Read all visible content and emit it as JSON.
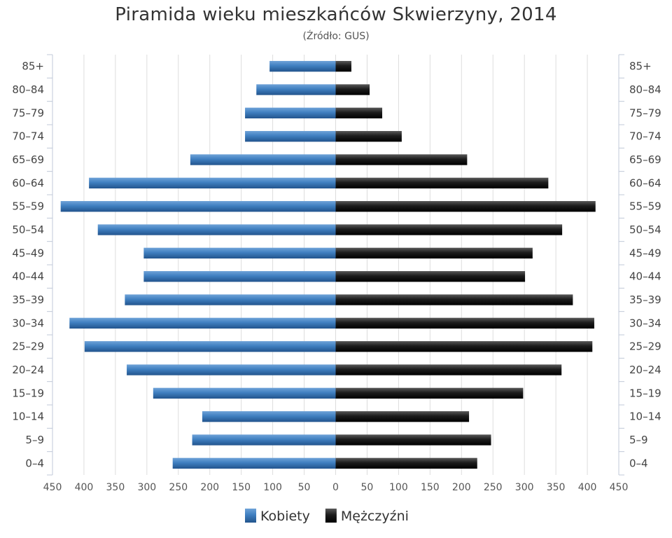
{
  "chart_data": {
    "type": "bar",
    "orientation": "horizontal",
    "title": "Piramida wieku mieszkańców Skwierzyny, 2014",
    "subtitle": "(Źródło: GUS)",
    "categories": [
      "85+",
      "80–84",
      "75–79",
      "70–74",
      "65–69",
      "60–64",
      "55–59",
      "50–54",
      "45–49",
      "40–44",
      "35–39",
      "30–34",
      "25–29",
      "20–24",
      "15–19",
      "10–14",
      "5–9",
      "0–4"
    ],
    "series": [
      {
        "name": "Kobiety",
        "color": "#3f7fc0",
        "values": [
          105,
          126,
          144,
          144,
          231,
          392,
          437,
          378,
          305,
          305,
          335,
          423,
          399,
          332,
          290,
          212,
          228,
          259
        ]
      },
      {
        "name": "Mężczyźni",
        "color": "#1c1c1c",
        "values": [
          25,
          54,
          74,
          105,
          209,
          338,
          413,
          360,
          313,
          301,
          377,
          411,
          408,
          359,
          298,
          212,
          247,
          225
        ]
      }
    ],
    "x_ticks": [
      "450",
      "400",
      "350",
      "300",
      "250",
      "200",
      "150",
      "100",
      "50",
      "0",
      "50",
      "100",
      "150",
      "200",
      "250",
      "300",
      "350",
      "400",
      "450"
    ],
    "xlim": [
      -450,
      450
    ],
    "grid": true,
    "legend": "bottom-center"
  }
}
